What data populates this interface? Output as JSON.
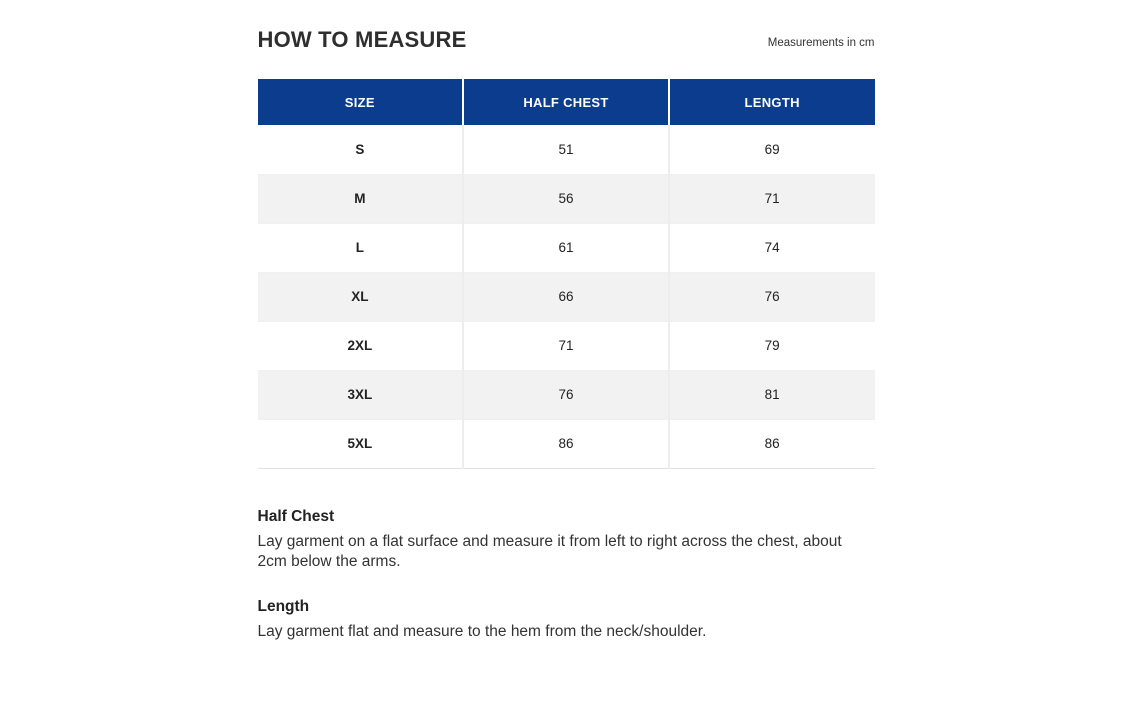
{
  "header": {
    "title": "HOW TO MEASURE",
    "unit_note": "Measurements in cm"
  },
  "table": {
    "columns": [
      "SIZE",
      "HALF CHEST",
      "LENGTH"
    ],
    "rows": [
      {
        "size": "S",
        "half_chest": "51",
        "length": "69"
      },
      {
        "size": "M",
        "half_chest": "56",
        "length": "71"
      },
      {
        "size": "L",
        "half_chest": "61",
        "length": "74"
      },
      {
        "size": "XL",
        "half_chest": "66",
        "length": "76"
      },
      {
        "size": "2XL",
        "half_chest": "71",
        "length": "79"
      },
      {
        "size": "3XL",
        "half_chest": "76",
        "length": "81"
      },
      {
        "size": "5XL",
        "half_chest": "86",
        "length": "86"
      }
    ]
  },
  "notes": [
    {
      "heading": "Half Chest",
      "body": "Lay garment on a flat surface and measure it from left to right across the chest, about 2cm below the arms."
    },
    {
      "heading": "Length",
      "body": "Lay garment flat and measure to the hem from the neck/shoulder."
    }
  ],
  "colors": {
    "header_bg": "#0c3c8e",
    "header_text": "#ffffff",
    "row_alt_bg": "#f2f2f2",
    "body_text": "#333333"
  }
}
